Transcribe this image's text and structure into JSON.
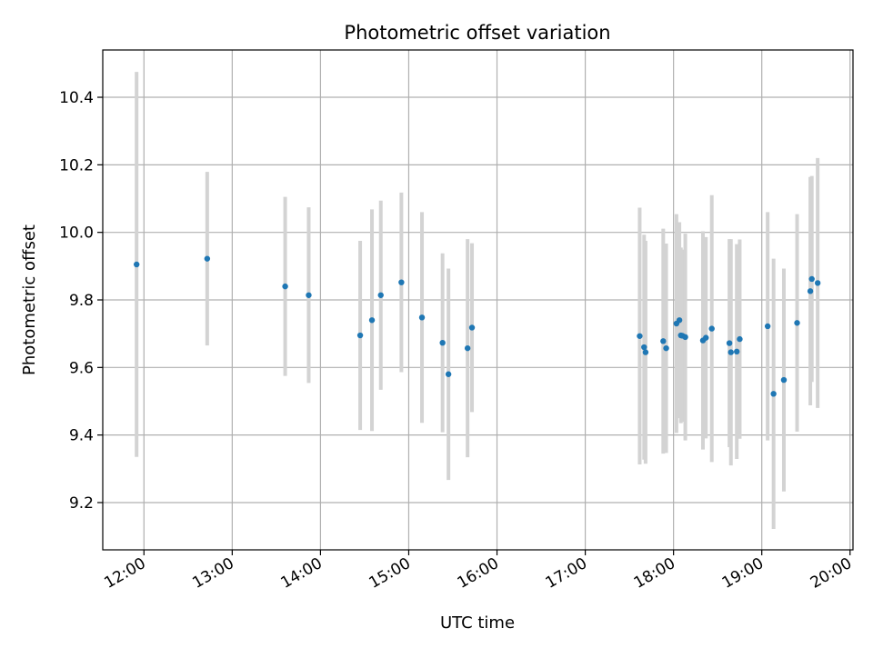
{
  "chart_data": {
    "type": "scatter",
    "title": "Photometric offset variation",
    "xlabel": "UTC time",
    "ylabel": "Photometric offset",
    "x_type": "time",
    "x_unit": "hours (UTC)",
    "xlim": [
      "11:32",
      "20:02"
    ],
    "ylim": [
      9.06,
      10.54
    ],
    "x_ticks": [
      "12:00",
      "13:00",
      "14:00",
      "15:00",
      "16:00",
      "17:00",
      "18:00",
      "19:00",
      "20:00"
    ],
    "y_ticks": [
      9.2,
      9.4,
      9.6,
      9.8,
      10.0,
      10.2,
      10.4
    ],
    "grid": true,
    "marker_color": "#1f77b4",
    "errorbar_color": "#d3d3d3",
    "series": [
      {
        "points": [
          {
            "x": "11:55",
            "y": 9.905,
            "yerr": 0.57
          },
          {
            "x": "12:43",
            "y": 9.922,
            "yerr": 0.257
          },
          {
            "x": "13:36",
            "y": 9.84,
            "yerr": 0.265
          },
          {
            "x": "13:52",
            "y": 9.814,
            "yerr": 0.26
          },
          {
            "x": "14:27",
            "y": 9.695,
            "yerr": 0.28
          },
          {
            "x": "14:35",
            "y": 9.74,
            "yerr": 0.328
          },
          {
            "x": "14:41",
            "y": 9.814,
            "yerr": 0.28
          },
          {
            "x": "14:55",
            "y": 9.852,
            "yerr": 0.266
          },
          {
            "x": "15:09",
            "y": 9.748,
            "yerr": 0.312
          },
          {
            "x": "15:23",
            "y": 9.673,
            "yerr": 0.265
          },
          {
            "x": "15:27",
            "y": 9.58,
            "yerr": 0.313
          },
          {
            "x": "15:40",
            "y": 9.657,
            "yerr": 0.323
          },
          {
            "x": "15:43",
            "y": 9.718,
            "yerr": 0.25
          },
          {
            "x": "17:37",
            "y": 9.693,
            "yerr": 0.38
          },
          {
            "x": "17:40",
            "y": 9.66,
            "yerr": 0.333
          },
          {
            "x": "17:41",
            "y": 9.645,
            "yerr": 0.33
          },
          {
            "x": "17:53",
            "y": 9.678,
            "yerr": 0.333
          },
          {
            "x": "17:55",
            "y": 9.657,
            "yerr": 0.31
          },
          {
            "x": "18:02",
            "y": 9.73,
            "yerr": 0.324
          },
          {
            "x": "18:04",
            "y": 9.74,
            "yerr": 0.29
          },
          {
            "x": "18:05",
            "y": 9.695,
            "yerr": 0.26
          },
          {
            "x": "18:06",
            "y": 9.694,
            "yerr": 0.255
          },
          {
            "x": "18:08",
            "y": 9.69,
            "yerr": 0.306
          },
          {
            "x": "18:20",
            "y": 9.68,
            "yerr": 0.323
          },
          {
            "x": "18:22",
            "y": 9.688,
            "yerr": 0.298
          },
          {
            "x": "18:26",
            "y": 9.715,
            "yerr": 0.395
          },
          {
            "x": "18:38",
            "y": 9.672,
            "yerr": 0.308
          },
          {
            "x": "18:39",
            "y": 9.645,
            "yerr": 0.335
          },
          {
            "x": "18:43",
            "y": 9.647,
            "yerr": 0.318
          },
          {
            "x": "18:45",
            "y": 9.684,
            "yerr": 0.295
          },
          {
            "x": "19:04",
            "y": 9.722,
            "yerr": 0.338
          },
          {
            "x": "19:08",
            "y": 9.522,
            "yerr": 0.4
          },
          {
            "x": "19:15",
            "y": 9.563,
            "yerr": 0.33
          },
          {
            "x": "19:24",
            "y": 9.732,
            "yerr": 0.322
          },
          {
            "x": "19:33",
            "y": 9.826,
            "yerr": 0.338
          },
          {
            "x": "19:34",
            "y": 9.862,
            "yerr": 0.305
          },
          {
            "x": "19:38",
            "y": 9.85,
            "yerr": 0.37
          }
        ]
      }
    ]
  }
}
